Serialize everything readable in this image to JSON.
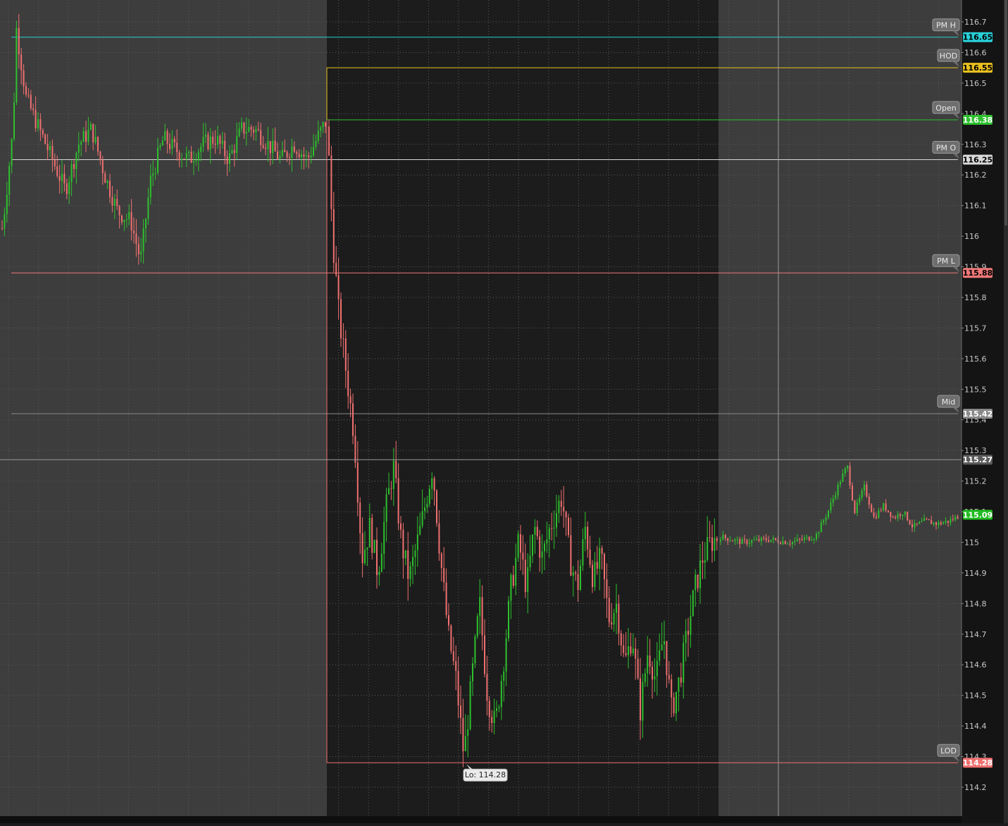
{
  "chart_data": {
    "type": "candlestick",
    "y_axis": {
      "range": [
        114.12,
        116.75
      ],
      "ticks": [
        "116.7",
        "116.6",
        "116.5",
        "116.4",
        "116.3",
        "116.2",
        "116.1",
        "116",
        "115.9",
        "115.8",
        "115.7",
        "115.6",
        "115.5",
        "115.4",
        "115.3",
        "115.2",
        "115.1",
        "115",
        "114.9",
        "114.8",
        "114.7",
        "114.6",
        "114.5",
        "114.4",
        "114.3",
        "114.2"
      ]
    },
    "sessions": [
      {
        "name": "premarket",
        "color": "#3d3d3d"
      },
      {
        "name": "regular",
        "color": "#1c1c1c"
      },
      {
        "name": "afterhours",
        "color": "#3d3d3d"
      }
    ],
    "levels": [
      {
        "label": "PM H",
        "value": 116.65,
        "value_text": "116.65",
        "color": "#29d0d8",
        "text_color": "#000000",
        "extent": "full"
      },
      {
        "label": "HOD",
        "value": 116.55,
        "value_text": "116.55",
        "color": "#e8c020",
        "text_color": "#000000",
        "extent": "regular"
      },
      {
        "label": "Open",
        "value": 116.38,
        "value_text": "116.38",
        "color": "#2ec02e",
        "text_color": "#ffffff",
        "extent": "regular"
      },
      {
        "label": "PM O",
        "value": 116.25,
        "value_text": "116.25",
        "color": "#d8d8d8",
        "text_color": "#000000",
        "extent": "full"
      },
      {
        "label": "PM L",
        "value": 115.88,
        "value_text": "115.88",
        "color": "#f07878",
        "text_color": "#000000",
        "extent": "full"
      },
      {
        "label": "Mid",
        "value": 115.42,
        "value_text": "115.42",
        "color": "#8a8a8a",
        "text_color": "#ffffff",
        "extent": "full"
      },
      {
        "label": "LOD",
        "value": 114.28,
        "value_text": "114.28",
        "color": "#f07070",
        "text_color": "#ffffff",
        "extent": "regular"
      }
    ],
    "crosshair": {
      "value": 115.27,
      "value_text": "115.27"
    },
    "last_price": {
      "value": 115.09,
      "value_text": "115.09",
      "color": "#22bb22"
    },
    "low_annotation": {
      "text": "Lo: 114.28",
      "value": 114.28
    },
    "colors": {
      "up": "#2ec02e",
      "down": "#f07070"
    },
    "price_path": {
      "premarket": [
        [
          0,
          115.98
        ],
        [
          0.01,
          116.05
        ],
        [
          0.04,
          116.35
        ],
        [
          0.05,
          116.68
        ],
        [
          0.08,
          116.45
        ],
        [
          0.12,
          116.35
        ],
        [
          0.16,
          116.25
        ],
        [
          0.2,
          116.15
        ],
        [
          0.24,
          116.3
        ],
        [
          0.28,
          116.35
        ],
        [
          0.32,
          116.2
        ],
        [
          0.36,
          116.08
        ],
        [
          0.4,
          116.05
        ],
        [
          0.43,
          115.92
        ],
        [
          0.46,
          116.18
        ],
        [
          0.5,
          116.32
        ],
        [
          0.54,
          116.28
        ],
        [
          0.58,
          116.25
        ],
        [
          0.62,
          116.3
        ],
        [
          0.66,
          116.32
        ],
        [
          0.7,
          116.25
        ],
        [
          0.74,
          116.35
        ],
        [
          0.78,
          116.35
        ],
        [
          0.82,
          116.3
        ],
        [
          0.86,
          116.25
        ],
        [
          0.9,
          116.3
        ],
        [
          0.94,
          116.25
        ],
        [
          0.97,
          116.32
        ],
        [
          1,
          116.38
        ]
      ],
      "regular": [
        [
          0,
          116.38
        ],
        [
          0.015,
          116.0
        ],
        [
          0.03,
          115.75
        ],
        [
          0.05,
          115.55
        ],
        [
          0.07,
          115.35
        ],
        [
          0.09,
          114.95
        ],
        [
          0.11,
          115.05
        ],
        [
          0.13,
          114.9
        ],
        [
          0.15,
          115.1
        ],
        [
          0.17,
          115.25
        ],
        [
          0.19,
          115.0
        ],
        [
          0.21,
          114.88
        ],
        [
          0.24,
          115.05
        ],
        [
          0.27,
          115.25
        ],
        [
          0.29,
          114.95
        ],
        [
          0.31,
          114.7
        ],
        [
          0.33,
          114.55
        ],
        [
          0.35,
          114.3
        ],
        [
          0.37,
          114.55
        ],
        [
          0.39,
          114.8
        ],
        [
          0.41,
          114.5
        ],
        [
          0.43,
          114.4
        ],
        [
          0.45,
          114.6
        ],
        [
          0.47,
          114.85
        ],
        [
          0.49,
          115.0
        ],
        [
          0.51,
          114.85
        ],
        [
          0.53,
          115.05
        ],
        [
          0.55,
          114.95
        ],
        [
          0.57,
          115.05
        ],
        [
          0.6,
          115.15
        ],
        [
          0.62,
          114.95
        ],
        [
          0.64,
          114.85
        ],
        [
          0.66,
          115.05
        ],
        [
          0.68,
          114.88
        ],
        [
          0.7,
          114.95
        ],
        [
          0.72,
          114.75
        ],
        [
          0.74,
          114.8
        ],
        [
          0.76,
          114.6
        ],
        [
          0.78,
          114.7
        ],
        [
          0.8,
          114.45
        ],
        [
          0.82,
          114.65
        ],
        [
          0.84,
          114.55
        ],
        [
          0.86,
          114.7
        ],
        [
          0.88,
          114.45
        ],
        [
          0.9,
          114.55
        ],
        [
          0.92,
          114.7
        ],
        [
          0.94,
          114.85
        ],
        [
          0.96,
          114.95
        ],
        [
          0.98,
          115.0
        ],
        [
          1,
          115.02
        ]
      ],
      "afterhours": [
        [
          0,
          115.02
        ],
        [
          0.1,
          115.0
        ],
        [
          0.2,
          115.01
        ],
        [
          0.3,
          115.0
        ],
        [
          0.4,
          115.02
        ],
        [
          0.45,
          115.1
        ],
        [
          0.5,
          115.2
        ],
        [
          0.53,
          115.25
        ],
        [
          0.56,
          115.1
        ],
        [
          0.6,
          115.18
        ],
        [
          0.64,
          115.08
        ],
        [
          0.68,
          115.12
        ],
        [
          0.72,
          115.08
        ],
        [
          0.76,
          115.1
        ],
        [
          0.8,
          115.05
        ],
        [
          0.85,
          115.07
        ],
        [
          0.9,
          115.06
        ],
        [
          0.95,
          115.07
        ],
        [
          1,
          115.09
        ]
      ]
    }
  }
}
